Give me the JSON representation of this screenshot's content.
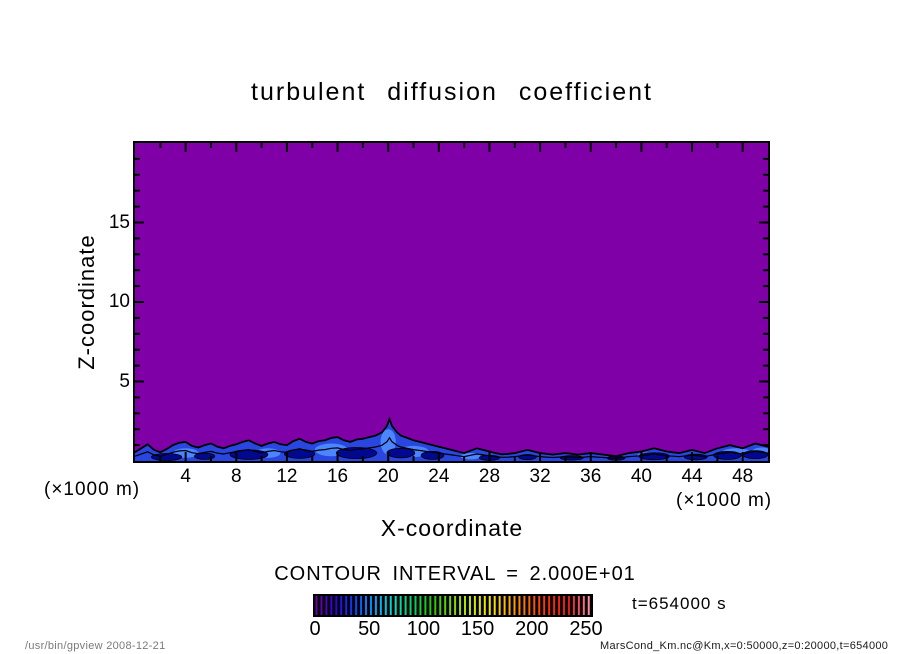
{
  "title": "turbulent diffusion coefficient",
  "axes": {
    "x": {
      "label": "X-coordinate",
      "unit": "(×1000 m)",
      "min": 0,
      "max": 50,
      "minor_step": 2,
      "major_step": 4,
      "tick_labels": [
        4,
        8,
        12,
        16,
        20,
        24,
        28,
        32,
        36,
        40,
        44,
        48
      ]
    },
    "y": {
      "label": "Z-coordinate",
      "unit": "(×1000 m)",
      "min": 0,
      "max": 20,
      "minor_step": 1,
      "major_step": 5,
      "tick_labels": [
        5,
        10,
        15
      ]
    }
  },
  "contour_note": "CONTOUR INTERVAL = 2.000E+01",
  "time_label": "t=654000 s",
  "colorbar": {
    "min": 0,
    "max": 250,
    "ticks": [
      0,
      50,
      100,
      150,
      200,
      250
    ],
    "background": "#000000",
    "stops": [
      "#7000A8",
      "#3000E8",
      "#0048FF",
      "#00A0FF",
      "#00E0C8",
      "#00D45C",
      "#28C800",
      "#80D800",
      "#D0E800",
      "#F8E800",
      "#FFA800",
      "#FF6000",
      "#FF2800",
      "#E81818",
      "#FF88A0"
    ]
  },
  "footer": {
    "left": "/usr/bin/gpview  2008-12-21",
    "right": "MarsCond_Km.nc@Km,x=0:50000,z=0:20000,t=654000"
  },
  "colors": {
    "field_low": "#8000A8",
    "band_mid": "#2946E0",
    "band_dark": "#000890",
    "band_light": "#4C86FF",
    "contour_line": "#000000"
  },
  "chart_data": {
    "type": "contour",
    "title": "turbulent diffusion coefficient",
    "xlabel": "X-coordinate",
    "ylabel": "Z-coordinate",
    "x_unit": "(×1000 m)",
    "y_unit": "(×1000 m)",
    "xlim": [
      0,
      50
    ],
    "ylim": [
      0,
      20
    ],
    "contour_interval": 20,
    "colorbar_range": [
      0,
      250
    ],
    "colorbar_ticks": [
      0,
      50,
      100,
      150,
      200,
      250
    ],
    "time_seconds": 654000,
    "field_summary": "Field is below the first contour level (purple, ~0-20) over nearly the whole domain; a shallow irregular near-surface layer of higher values (blue shades, ~20-80) lies below about z=1.5, with a narrow peak reaching z~2.6 near x=20.",
    "surface_band": {
      "fill_levels": [
        "20-40",
        "40-60",
        "60-80"
      ],
      "profile": [
        [
          0,
          0.55
        ],
        [
          0.5,
          0.8
        ],
        [
          1,
          1.05
        ],
        [
          1.5,
          0.7
        ],
        [
          2,
          0.55
        ],
        [
          2.5,
          0.75
        ],
        [
          3,
          1.0
        ],
        [
          3.5,
          1.15
        ],
        [
          4,
          1.2
        ],
        [
          4.5,
          0.95
        ],
        [
          5,
          0.85
        ],
        [
          5.5,
          1.0
        ],
        [
          6,
          1.1
        ],
        [
          6.5,
          0.9
        ],
        [
          7,
          0.8
        ],
        [
          7.5,
          0.95
        ],
        [
          8,
          1.05
        ],
        [
          8.5,
          1.2
        ],
        [
          9,
          1.3
        ],
        [
          9.5,
          1.1
        ],
        [
          10,
          0.95
        ],
        [
          10.5,
          1.1
        ],
        [
          11,
          1.2
        ],
        [
          11.5,
          1.05
        ],
        [
          12,
          1.0
        ],
        [
          12.5,
          1.25
        ],
        [
          13,
          1.4
        ],
        [
          13.5,
          1.2
        ],
        [
          14,
          1.1
        ],
        [
          14.5,
          1.25
        ],
        [
          15,
          1.3
        ],
        [
          15.5,
          1.45
        ],
        [
          16,
          1.5
        ],
        [
          16.5,
          1.3
        ],
        [
          17,
          1.2
        ],
        [
          17.5,
          1.35
        ],
        [
          18,
          1.4
        ],
        [
          18.5,
          1.5
        ],
        [
          19,
          1.6
        ],
        [
          19.5,
          1.8
        ],
        [
          19.9,
          2.2
        ],
        [
          20.1,
          2.65
        ],
        [
          20.3,
          2.2
        ],
        [
          20.7,
          1.8
        ],
        [
          21,
          1.6
        ],
        [
          21.5,
          1.45
        ],
        [
          22,
          1.3
        ],
        [
          22.5,
          1.2
        ],
        [
          23,
          1.1
        ],
        [
          23.5,
          1.0
        ],
        [
          24,
          0.9
        ],
        [
          24.5,
          0.8
        ],
        [
          25,
          0.7
        ],
        [
          25.5,
          0.6
        ],
        [
          26,
          0.5
        ],
        [
          26.5,
          0.65
        ],
        [
          27,
          0.8
        ],
        [
          27.5,
          0.7
        ],
        [
          28,
          0.6
        ],
        [
          28.5,
          0.5
        ],
        [
          29,
          0.42
        ],
        [
          29.5,
          0.45
        ],
        [
          30,
          0.5
        ],
        [
          30.5,
          0.6
        ],
        [
          31,
          0.7
        ],
        [
          31.5,
          0.6
        ],
        [
          32,
          0.5
        ],
        [
          32.5,
          0.45
        ],
        [
          33,
          0.4
        ],
        [
          33.5,
          0.45
        ],
        [
          34,
          0.5
        ],
        [
          34.5,
          0.45
        ],
        [
          35,
          0.4
        ],
        [
          35.5,
          0.45
        ],
        [
          36,
          0.5
        ],
        [
          36.5,
          0.45
        ],
        [
          37,
          0.4
        ],
        [
          37.5,
          0.35
        ],
        [
          38,
          0.3
        ],
        [
          38.5,
          0.4
        ],
        [
          39,
          0.5
        ],
        [
          39.5,
          0.55
        ],
        [
          40,
          0.6
        ],
        [
          40.5,
          0.7
        ],
        [
          41,
          0.8
        ],
        [
          41.5,
          0.7
        ],
        [
          42,
          0.6
        ],
        [
          42.5,
          0.55
        ],
        [
          43,
          0.5
        ],
        [
          43.5,
          0.6
        ],
        [
          44,
          0.7
        ],
        [
          44.5,
          0.6
        ],
        [
          45,
          0.5
        ],
        [
          45.5,
          0.65
        ],
        [
          46,
          0.8
        ],
        [
          46.5,
          0.9
        ],
        [
          47,
          1.0
        ],
        [
          47.5,
          0.9
        ],
        [
          48,
          0.8
        ],
        [
          48.5,
          0.95
        ],
        [
          49,
          1.1
        ],
        [
          49.5,
          1.0
        ],
        [
          50,
          0.9
        ]
      ]
    },
    "dark_patches": [
      [
        2.5,
        0.25,
        1.2,
        0.22
      ],
      [
        5.5,
        0.3,
        0.8,
        0.2
      ],
      [
        9,
        0.4,
        1.5,
        0.3
      ],
      [
        13,
        0.45,
        1.2,
        0.28
      ],
      [
        17.5,
        0.5,
        1.6,
        0.35
      ],
      [
        21,
        0.5,
        1.1,
        0.3
      ],
      [
        23.5,
        0.35,
        0.9,
        0.25
      ],
      [
        28,
        0.2,
        0.8,
        0.16
      ],
      [
        31,
        0.25,
        0.7,
        0.16
      ],
      [
        34.5,
        0.2,
        0.9,
        0.14
      ],
      [
        38,
        0.18,
        0.7,
        0.13
      ],
      [
        41,
        0.3,
        1.2,
        0.22
      ],
      [
        44.3,
        0.25,
        0.9,
        0.18
      ],
      [
        46.8,
        0.35,
        1.1,
        0.25
      ],
      [
        49,
        0.4,
        1.0,
        0.25
      ]
    ],
    "light_patches": [
      [
        4,
        0.5,
        1.0,
        0.3
      ],
      [
        10.5,
        0.5,
        1.0,
        0.3
      ],
      [
        15.5,
        0.7,
        1.3,
        0.4
      ],
      [
        20,
        1.2,
        0.6,
        0.8
      ],
      [
        22,
        0.6,
        1.2,
        0.35
      ],
      [
        26.5,
        0.3,
        0.8,
        0.2
      ],
      [
        40.5,
        0.35,
        0.8,
        0.2
      ],
      [
        47.5,
        0.5,
        1.2,
        0.3
      ],
      [
        49.5,
        0.55,
        0.8,
        0.3
      ]
    ]
  }
}
